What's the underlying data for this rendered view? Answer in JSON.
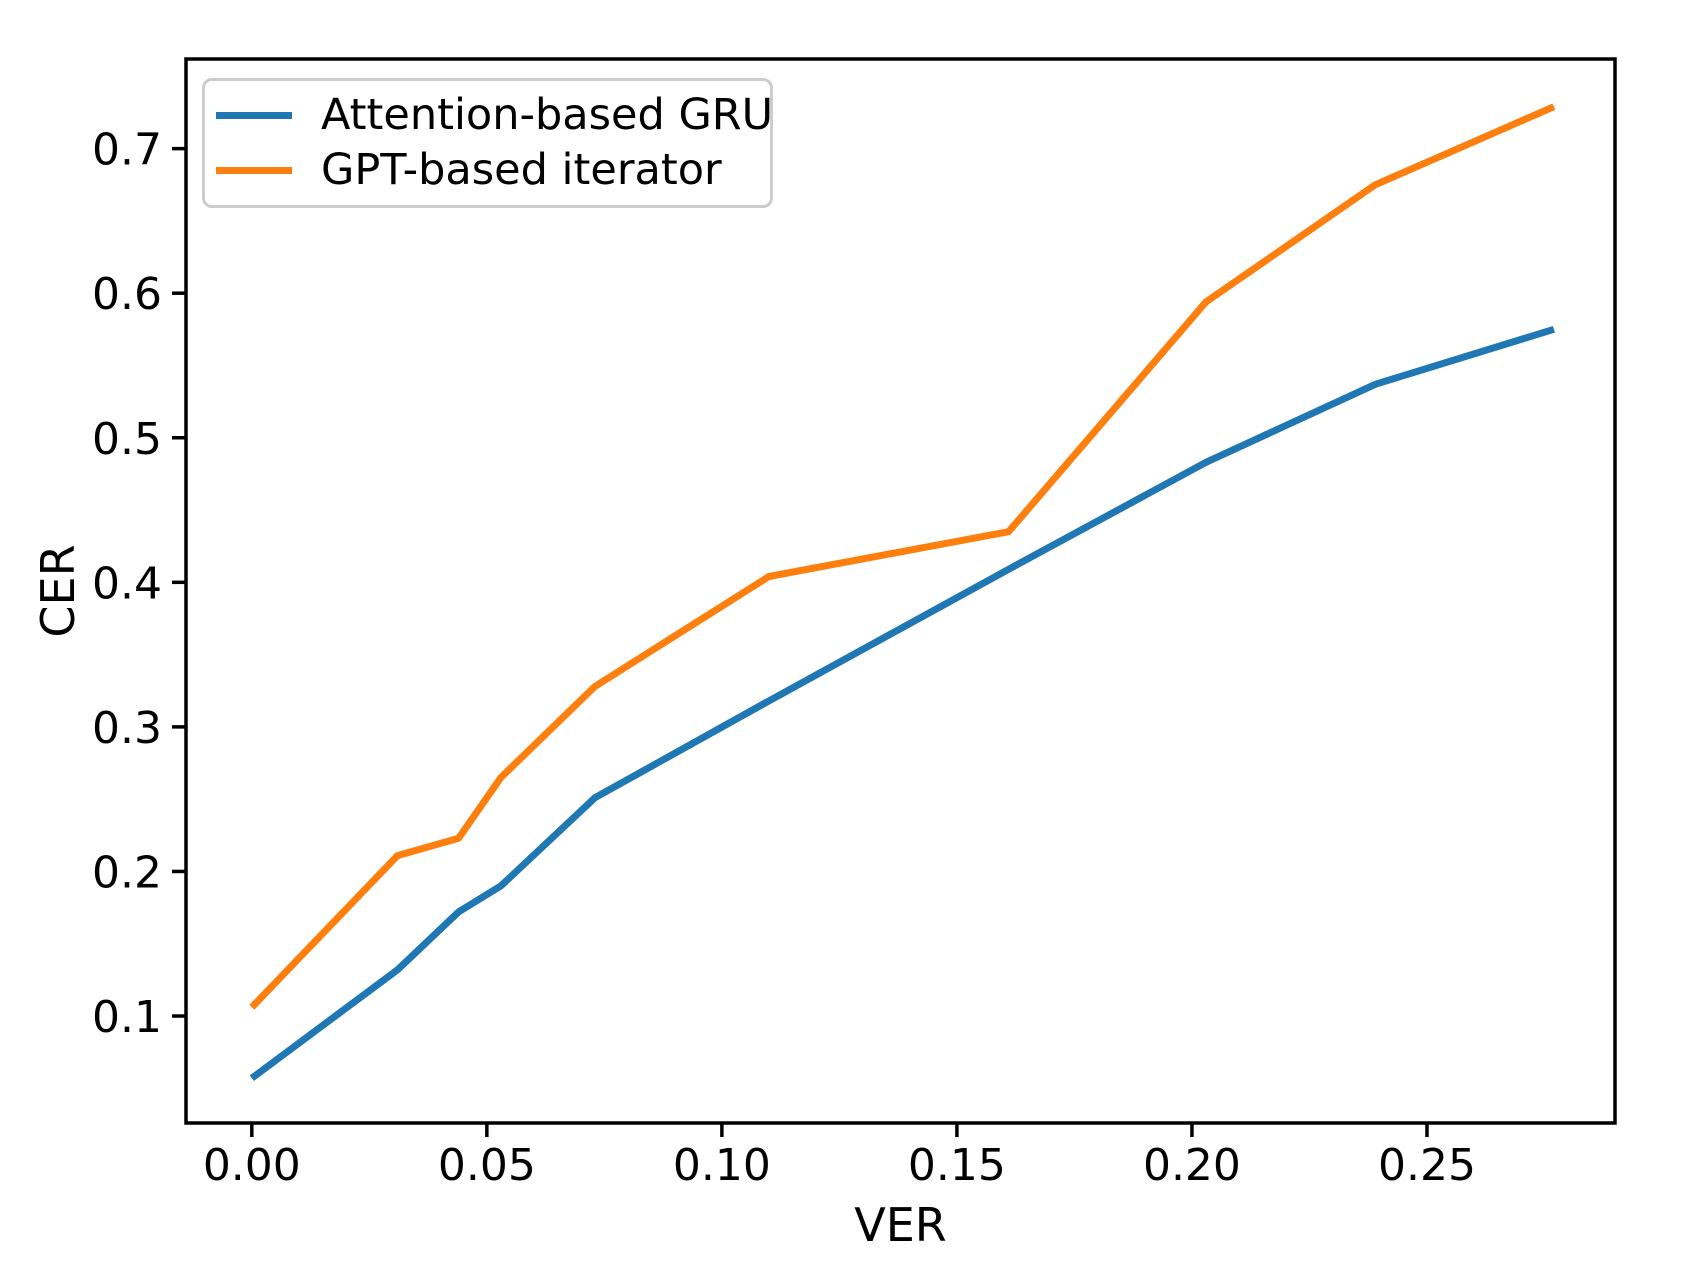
{
  "figure": {
    "background_color": "#ffffff",
    "text_color": "#000000",
    "spine_color": "#000000"
  },
  "chart_data": {
    "type": "line",
    "title": "",
    "xlabel": "VER",
    "ylabel": "CER",
    "grid": false,
    "legend_position": "upper left",
    "xlim": [
      -0.014,
      0.29
    ],
    "ylim": [
      0.026,
      0.762
    ],
    "xticks": [
      0.0,
      0.05,
      0.1,
      0.15,
      0.2,
      0.25
    ],
    "xtick_labels": [
      "0.00",
      "0.05",
      "0.10",
      "0.15",
      "0.20",
      "0.25"
    ],
    "yticks": [
      0.1,
      0.2,
      0.3,
      0.4,
      0.5,
      0.6,
      0.7
    ],
    "ytick_labels": [
      "0.1",
      "0.2",
      "0.3",
      "0.4",
      "0.5",
      "0.6",
      "0.7"
    ],
    "x": [
      0.0,
      0.031,
      0.044,
      0.053,
      0.073,
      0.11,
      0.161,
      0.203,
      0.239,
      0.277
    ],
    "series": [
      {
        "name": "Attention-based GRU",
        "color": "#1f77b4",
        "values": [
          0.057,
          0.132,
          0.172,
          0.19,
          0.251,
          0.318,
          0.409,
          0.483,
          0.537,
          0.575
        ]
      },
      {
        "name": "GPT-based iterator",
        "color": "#ff7f0e",
        "values": [
          0.106,
          0.211,
          0.223,
          0.265,
          0.328,
          0.404,
          0.435,
          0.594,
          0.675,
          0.729
        ]
      }
    ]
  }
}
